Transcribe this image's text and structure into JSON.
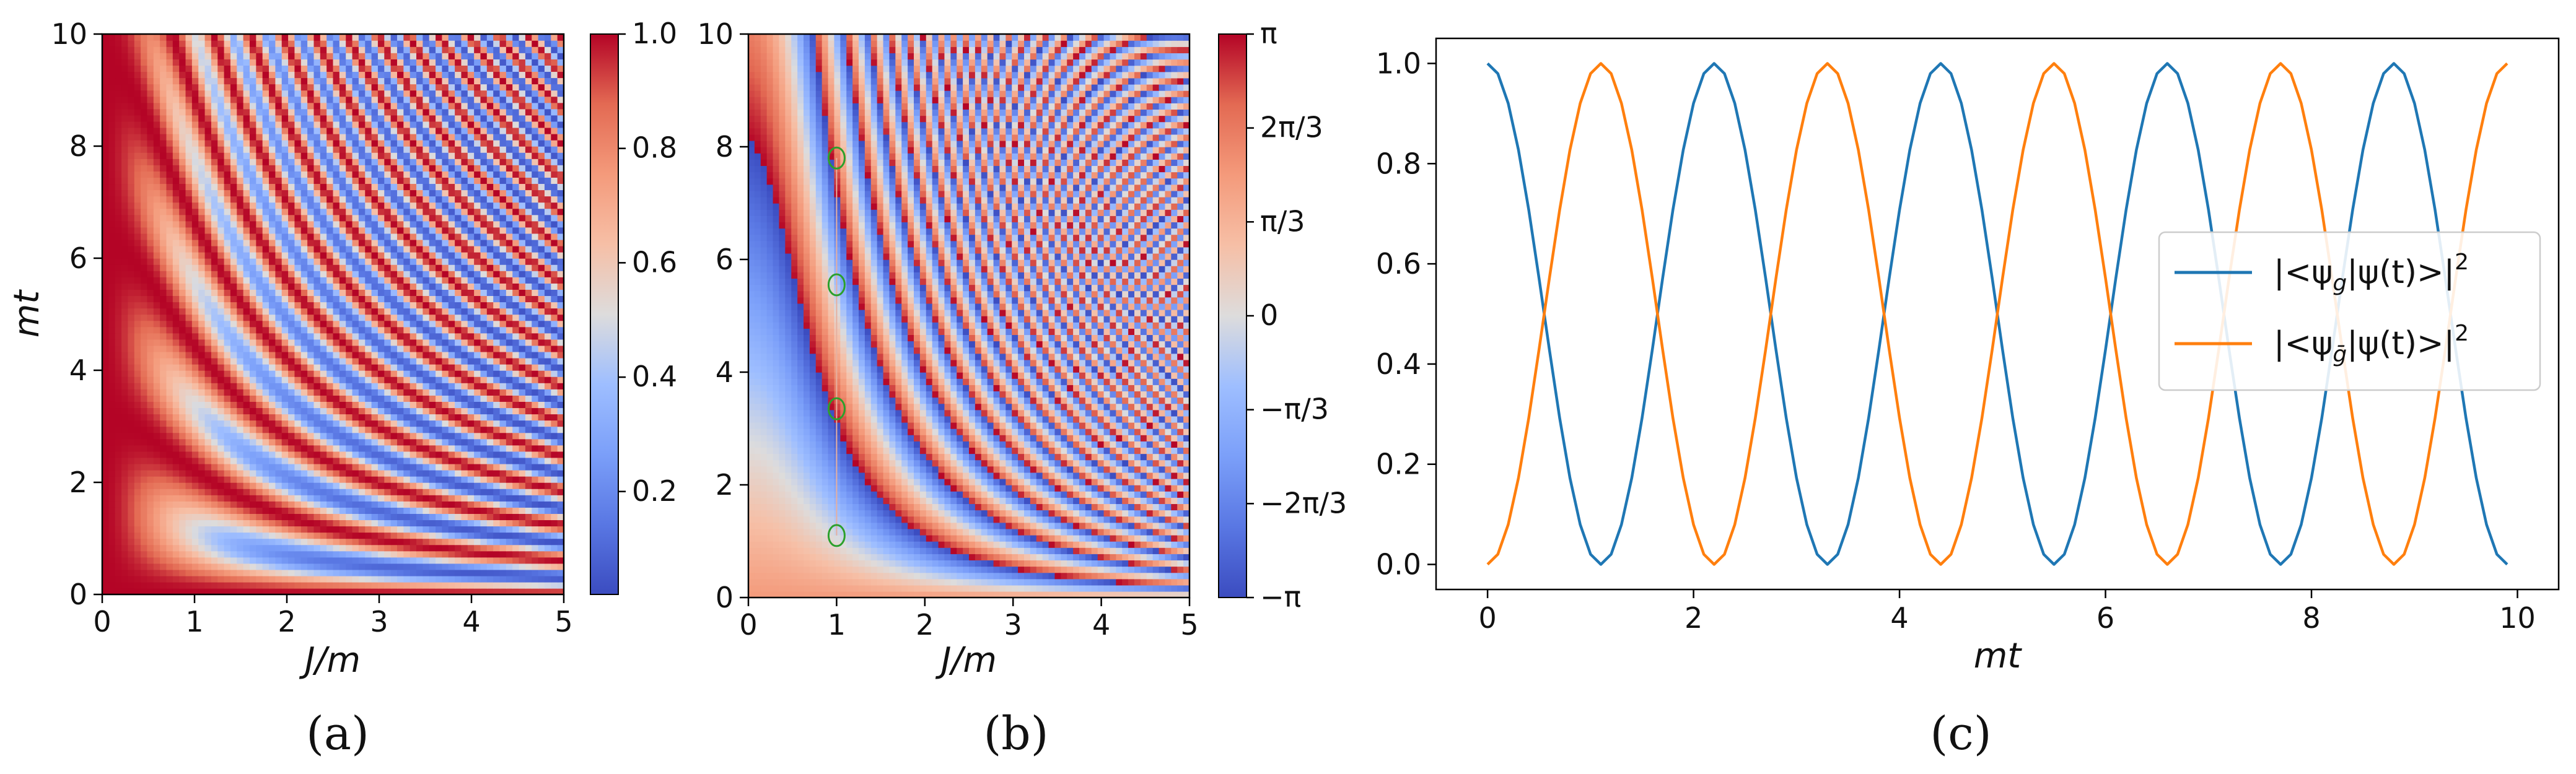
{
  "chart_data": [
    {
      "type": "heatmap",
      "panel_label": "(a)",
      "xlabel": "J/m",
      "ylabel": "mt",
      "xlim": [
        0,
        5
      ],
      "ylim": [
        0,
        10
      ],
      "xticks": [
        "0",
        "1",
        "2",
        "3",
        "4",
        "5"
      ],
      "yticks": [
        "0",
        "2",
        "4",
        "6",
        "8",
        "10"
      ],
      "colormap": "coolwarm",
      "colorbar": {
        "range": [
          0.02,
          1.0
        ],
        "ticks": [
          "0.2",
          "0.4",
          "0.6",
          "0.8",
          "1.0"
        ],
        "tick_values": [
          0.2,
          0.4,
          0.6,
          0.8,
          1.0
        ]
      }
    },
    {
      "type": "heatmap",
      "panel_label": "(b)",
      "xlabel": "J/m",
      "ylabel": "",
      "xlim": [
        0,
        5
      ],
      "ylim": [
        0,
        10
      ],
      "xticks": [
        "0",
        "1",
        "2",
        "3",
        "4",
        "5"
      ],
      "yticks": [
        "0",
        "2",
        "4",
        "6",
        "8",
        "10"
      ],
      "colormap": "coolwarm",
      "markers": [
        {
          "x": 1.0,
          "y": 1.1
        },
        {
          "x": 1.0,
          "y": 3.35
        },
        {
          "x": 1.0,
          "y": 5.55
        },
        {
          "x": 1.0,
          "y": 7.8
        }
      ],
      "marker_color": "#2ca02c",
      "colorbar": {
        "range": [
          -3.14159,
          3.14159
        ],
        "ticks": [
          "π",
          "2π/3",
          "π/3",
          "0",
          "−π/3",
          "−2π/3",
          "−π"
        ],
        "tick_values": [
          3.14159,
          2.0944,
          1.0472,
          0,
          -1.0472,
          -2.0944,
          -3.14159
        ]
      }
    },
    {
      "type": "line",
      "panel_label": "(c)",
      "xlabel": "mt",
      "ylabel": "",
      "xlim": [
        -0.5,
        10.4
      ],
      "ylim": [
        -0.05,
        1.05
      ],
      "xticks": [
        "0",
        "2",
        "4",
        "6",
        "8",
        "10"
      ],
      "yticks": [
        "0.0",
        "0.2",
        "0.4",
        "0.6",
        "0.8",
        "1.0"
      ],
      "x_range": [
        0,
        9.9
      ],
      "x_step": 0.1,
      "period": 2.2,
      "series": [
        {
          "name": "|<ψg|ψ(t)>|²",
          "legend_main": "|<ψ",
          "legend_sub": "g",
          "legend_tail": "|ψ(t)>|",
          "legend_sup": "2",
          "color": "#1f77b4",
          "formula": "cos²(πt/2.2)"
        },
        {
          "name": "|<ψḡ|ψ(t)>|²",
          "legend_main": "|<ψ",
          "legend_sub": "ḡ",
          "legend_tail": "|ψ(t)>|",
          "legend_sup": "2",
          "color": "#ff7f0e",
          "formula": "sin²(πt/2.2)"
        }
      ],
      "legend_position": "center-right"
    }
  ]
}
